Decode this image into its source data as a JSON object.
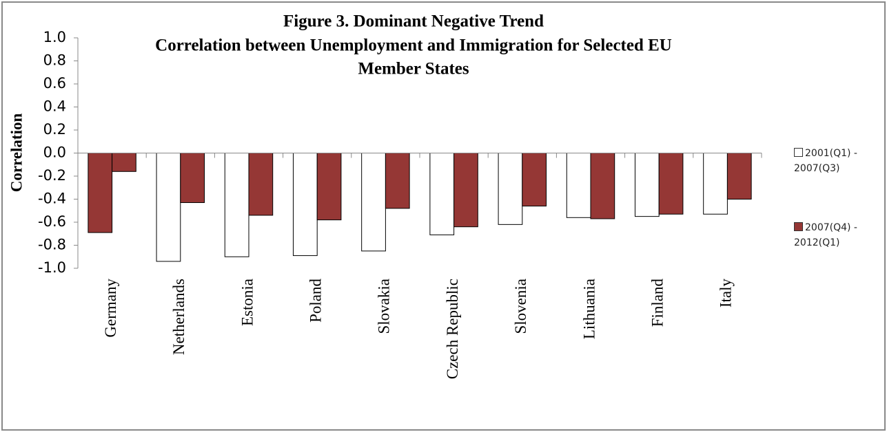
{
  "chart_data": {
    "type": "bar",
    "title": [
      "Figure 3. Dominant Negative Trend",
      "Correlation between Unemployment and Immigration for Selected EU",
      "Member States"
    ],
    "y_label": "Correlation",
    "categories": [
      "Germany",
      "Netherlands",
      "Estonia",
      "Poland",
      "Slovakia",
      "Czech Republic",
      "Slovenia",
      "Lithuania",
      "Finland",
      "Italy"
    ],
    "series": [
      {
        "name": "2001(Q1) - 2007(Q3)",
        "color": "#ffffff",
        "point_colors": [
          "#953735",
          null,
          null,
          null,
          null,
          null,
          null,
          null,
          null,
          null
        ],
        "values": [
          -0.69,
          -0.94,
          -0.9,
          -0.89,
          -0.85,
          -0.71,
          -0.62,
          -0.56,
          -0.55,
          -0.53
        ]
      },
      {
        "name": "2007(Q4) - 2012(Q1)",
        "color": "#953735",
        "values": [
          -0.16,
          -0.43,
          -0.54,
          -0.58,
          -0.48,
          -0.64,
          -0.46,
          -0.57,
          -0.53,
          -0.4
        ]
      }
    ],
    "ylim": [
      -1.0,
      1.0
    ],
    "yticks": [
      {
        "value": -1.0,
        "label": "-1.0"
      },
      {
        "value": -0.8,
        "label": "-0.8"
      },
      {
        "value": -0.6,
        "label": "-0.6"
      },
      {
        "value": -0.4,
        "label": "-0.4"
      },
      {
        "value": -0.2,
        "label": "-0.2"
      },
      {
        "value": 0,
        "label": "0.0"
      },
      {
        "value": 0.2,
        "label": "0.2"
      },
      {
        "value": 0.4,
        "label": "0.4"
      },
      {
        "value": 0.6,
        "label": "0.6"
      },
      {
        "value": 0.8,
        "label": "0.8"
      },
      {
        "value": 1.0,
        "label": "1.0"
      }
    ],
    "grid": false,
    "legend": "right"
  }
}
